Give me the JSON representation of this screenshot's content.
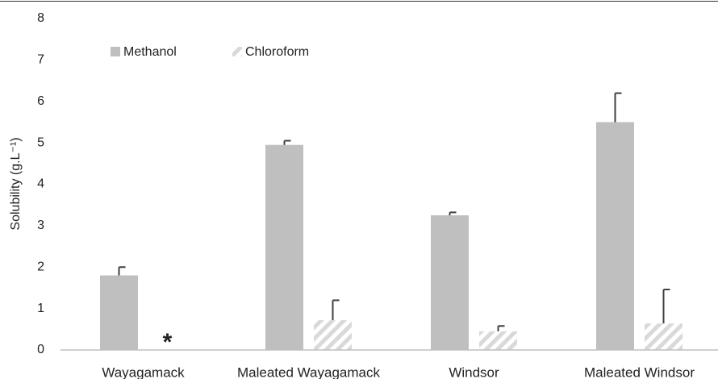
{
  "chart_data": {
    "type": "bar",
    "ylabel": "Solubility (g.L⁻¹)",
    "categories": [
      "Wayagamack",
      "Maleated Wayagamack",
      "Windsor",
      "Maleated Windsor"
    ],
    "series": [
      {
        "name": "Methanol",
        "color": "#bfbfbf",
        "values": [
          1.8,
          4.95,
          3.25,
          5.5
        ],
        "errors": [
          0.2,
          0.1,
          0.07,
          0.7
        ]
      },
      {
        "name": "Chloroform",
        "color": "#d9d9d9",
        "pattern": "hatch",
        "values": [
          null,
          0.72,
          0.45,
          0.64
        ],
        "errors": [
          null,
          0.48,
          0.13,
          0.82
        ]
      }
    ],
    "annotation": "*",
    "ylim": [
      0,
      8
    ],
    "yticks": [
      0,
      1,
      2,
      3,
      4,
      5,
      6,
      7,
      8
    ],
    "grid": false,
    "legend": "top-left"
  }
}
